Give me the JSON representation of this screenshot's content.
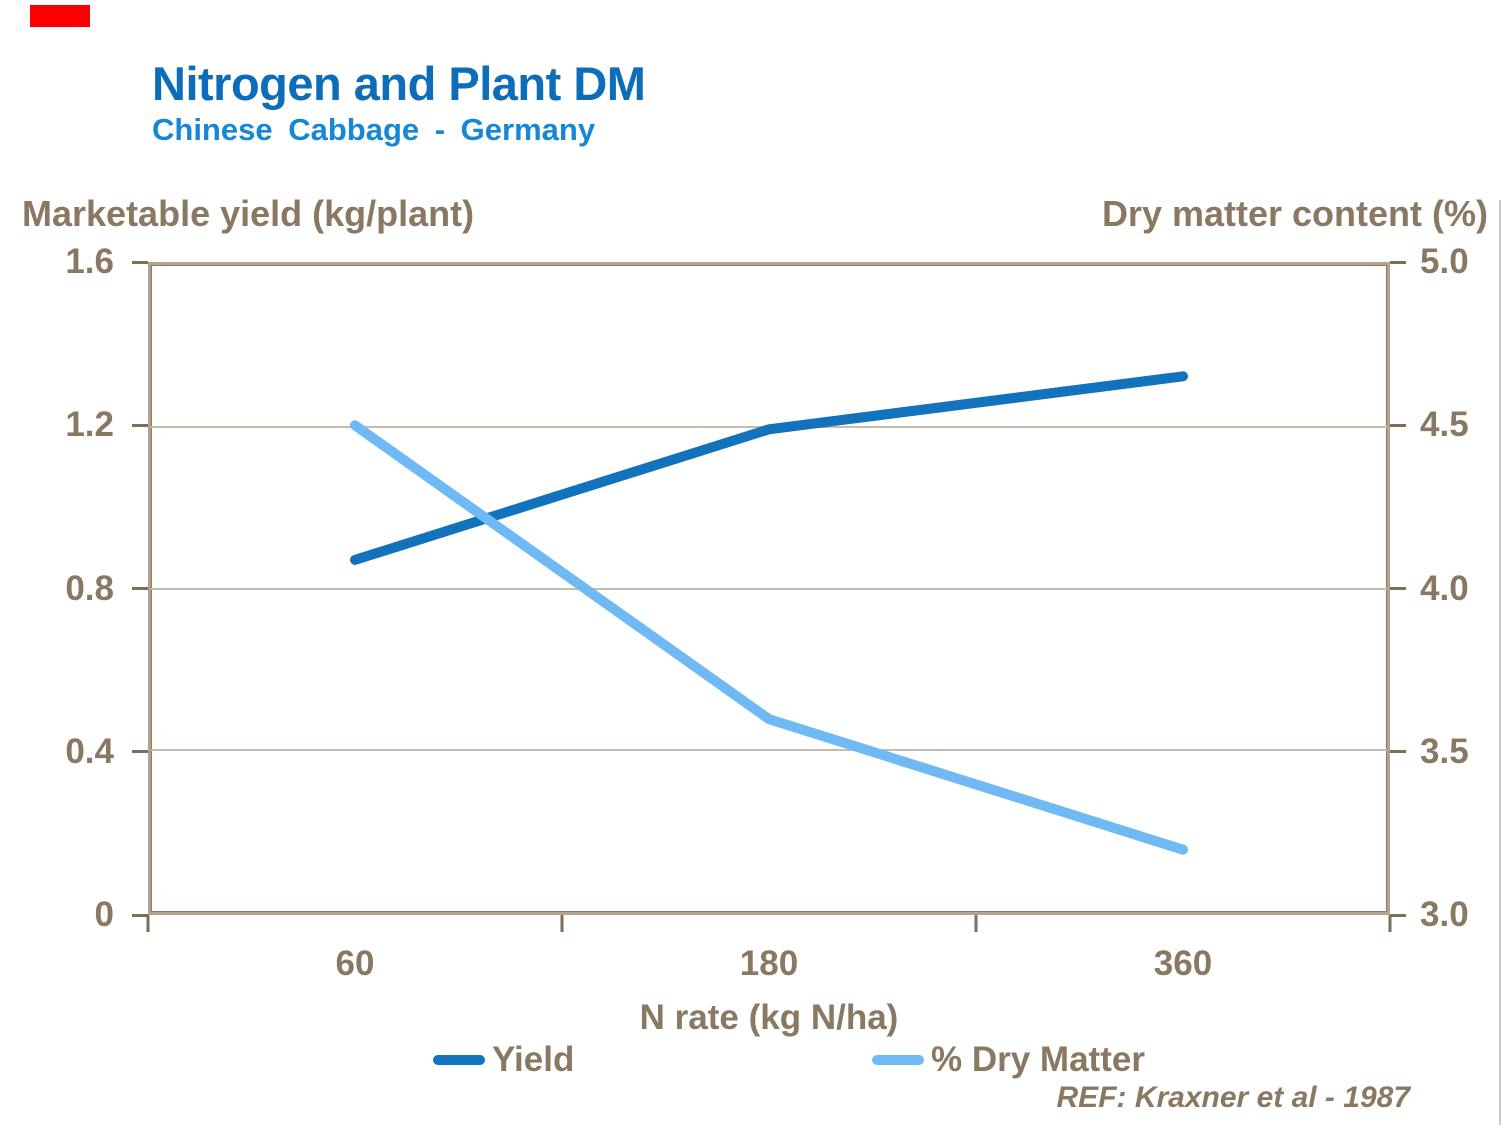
{
  "slide": {
    "title": "Nitrogen and Plant DM",
    "subtitle": "Chinese Cabbage - Germany",
    "ref_note": "REF: Kraxner et al - 1987",
    "accent_bar_color": "#ff0000"
  },
  "colors": {
    "title_blue": "#0e6db8",
    "subtitle_blue": "#1686d6",
    "text_brown": "#897862",
    "gridline": "#c6bbac",
    "plot_border": "#b2a390",
    "tick_mark": "#7e6e59",
    "yield_line": "#1272bc",
    "dry_matter_line": "#6fb9f4"
  },
  "chart_data": {
    "type": "line",
    "title": "Nitrogen and Plant DM",
    "subtitle": "Chinese Cabbage - Germany",
    "xlabel": "N rate (kg N/ha)",
    "title_left_axis": "Marketable yield (kg/plant)",
    "title_right_axis": "Dry matter content (%)",
    "categories": [
      "60",
      "180",
      "360"
    ],
    "series": [
      {
        "name": "Yield",
        "axis": "left",
        "color": "#1272bc",
        "values": [
          0.87,
          1.19,
          1.32
        ]
      },
      {
        "name": "% Dry Matter",
        "axis": "right",
        "color": "#6fb9f4",
        "values": [
          4.5,
          3.6,
          3.2
        ]
      }
    ],
    "left_axis": {
      "ticks": [
        "1.6",
        "1.2",
        "0.8",
        "0.4",
        "0"
      ],
      "min": 0,
      "max": 1.6
    },
    "right_axis": {
      "ticks": [
        "5.0",
        "4.5",
        "4.0",
        "3.5",
        "3.0"
      ],
      "min": 3.0,
      "max": 5.0
    },
    "grid": "horizontal",
    "legend_position": "bottom"
  }
}
